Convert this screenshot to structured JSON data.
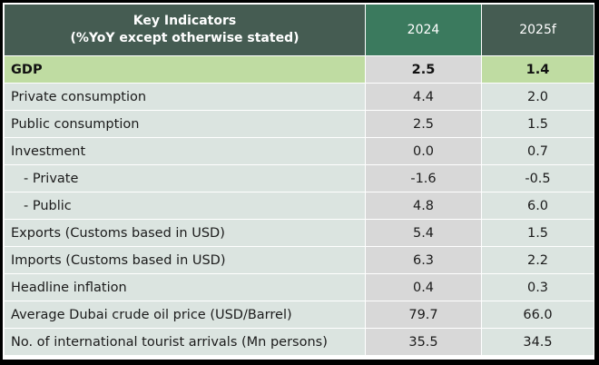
{
  "table": {
    "header": {
      "title_line1": "Key Indicators",
      "title_line2": "(%YoY except otherwise stated)",
      "col_2024": "2024",
      "col_2025": "2025f"
    },
    "rows": [
      {
        "label": "GDP",
        "v2024": "2.5",
        "v2025": "1.4",
        "highlight": true
      },
      {
        "label": "Private consumption",
        "v2024": "4.4",
        "v2025": "2.0"
      },
      {
        "label": "Public consumption",
        "v2024": "2.5",
        "v2025": "1.5"
      },
      {
        "label": "Investment",
        "v2024": "0.0",
        "v2025": "0.7"
      },
      {
        "label": "- Private",
        "v2024": "-1.6",
        "v2025": "-0.5",
        "indent": true
      },
      {
        "label": "- Public",
        "v2024": "4.8",
        "v2025": "6.0",
        "indent": true
      },
      {
        "label": "Exports (Customs based in USD)",
        "v2024": "5.4",
        "v2025": "1.5"
      },
      {
        "label": "Imports (Customs based in USD)",
        "v2024": "6.3",
        "v2025": "2.2"
      },
      {
        "label": "Headline inflation",
        "v2024": "0.4",
        "v2025": "0.3"
      },
      {
        "label": "Average Dubai crude oil price (USD/Barrel)",
        "v2024": "79.7",
        "v2025": "66.0"
      },
      {
        "label": "No. of international tourist arrivals (Mn persons)",
        "v2024": "35.5",
        "v2025": "34.5"
      }
    ]
  },
  "colors": {
    "header_dark": "#455c52",
    "header_2024": "#3b7a5e",
    "gdp_highlight": "#bfdca2",
    "row_bg": "#dbe4e0",
    "col_2024_bg": "#d8d8d8"
  }
}
